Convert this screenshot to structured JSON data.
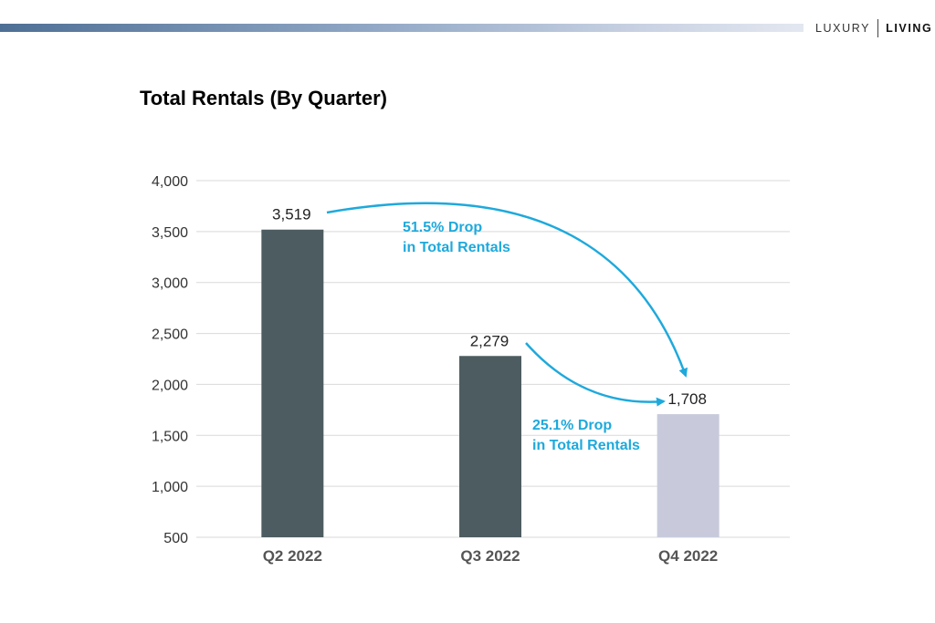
{
  "brand": {
    "left": "LUXURY",
    "right": "LIVING"
  },
  "chart_data": {
    "type": "bar",
    "title": "Total Rentals (By Quarter)",
    "categories": [
      "Q2 2022",
      "Q3 2022",
      "Q4 2022"
    ],
    "values": [
      3519,
      2279,
      1708
    ],
    "value_labels": [
      "3,519",
      "2,279",
      "1,708"
    ],
    "bar_colors": [
      "#4d5c60",
      "#4d5c60",
      "#c8cadc"
    ],
    "ylim": [
      500,
      4000
    ],
    "yticks": [
      500,
      1000,
      1500,
      2000,
      2500,
      3000,
      3500,
      4000
    ],
    "ytick_labels": [
      "500",
      "1,000",
      "1,500",
      "2,000",
      "2,500",
      "3,000",
      "3,500",
      "4,000"
    ],
    "grid": true,
    "xlabel": "",
    "ylabel": "",
    "annotations": [
      {
        "line1": "51.5% Drop",
        "line2": "in Total Rentals",
        "from": "Q2 2022",
        "to": "Q4 2022"
      },
      {
        "line1": "25.1% Drop",
        "line2": "in Total Rentals",
        "from": "Q3 2022",
        "to": "Q4 2022"
      }
    ],
    "accent_color": "#1ea9dc"
  }
}
